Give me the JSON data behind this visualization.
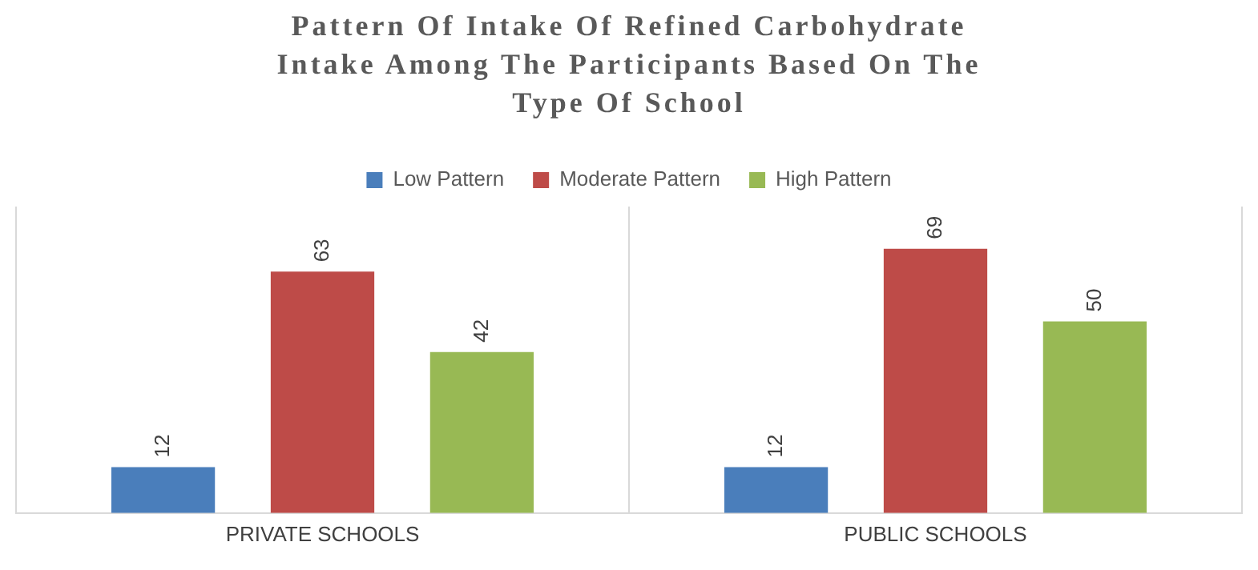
{
  "chart_data": {
    "type": "bar",
    "title": "Pattern Of Intake Of Refined Carbohydrate Intake Among The Participants Based On The Type Of School",
    "categories": [
      "PRIVATE SCHOOLS",
      "PUBLIC SCHOOLS"
    ],
    "series": [
      {
        "name": "Low Pattern",
        "color": "#4a7ebb",
        "values": [
          12,
          12
        ]
      },
      {
        "name": "Moderate Pattern",
        "color": "#be4b48",
        "values": [
          63,
          69
        ]
      },
      {
        "name": "High Pattern",
        "color": "#98b954",
        "values": [
          42,
          50
        ]
      }
    ],
    "data_labels": true,
    "legend": "top",
    "grid": "x"
  }
}
